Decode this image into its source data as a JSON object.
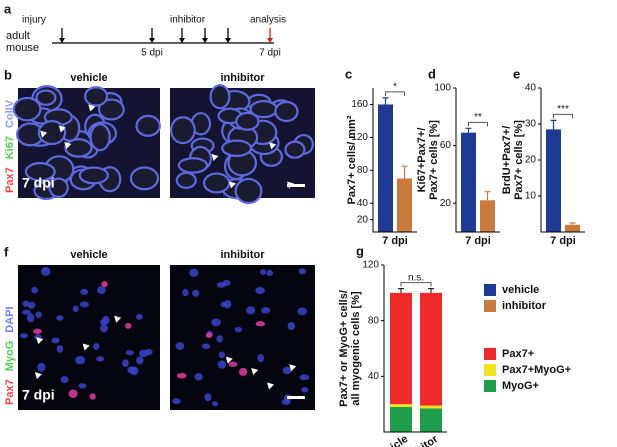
{
  "timeline": {
    "panel": "a",
    "start": [
      "adult",
      "mouse"
    ],
    "injury": "injury",
    "inhibitor": "inhibitor",
    "analysis": "analysis",
    "mid": "5 dpi",
    "end": "7 dpi"
  },
  "images": [
    {
      "panel": "b",
      "columns": [
        "vehicle",
        "inhibitor"
      ],
      "channels": [
        "ColIV",
        "Ki67",
        "Pax7"
      ],
      "timepoint": "7 dpi"
    },
    {
      "panel": "f",
      "columns": [
        "vehicle",
        "inhibitor"
      ],
      "channels": [
        "DAPI",
        "MyoG",
        "Pax7"
      ],
      "timepoint": "7 dpi"
    }
  ],
  "chart_data": [
    {
      "type": "bar",
      "panel": "c",
      "ylabel": [
        "Pax7+ cells/ mm²"
      ],
      "categories": [
        "7 dpi"
      ],
      "series": [
        {
          "name": "vehicle",
          "color": "#1f3a93",
          "values": [
            160
          ],
          "errors": [
            8
          ]
        },
        {
          "name": "inhibitor",
          "color": "#c97a3e",
          "values": [
            70
          ],
          "errors": [
            15
          ]
        }
      ],
      "ylim": [
        5,
        180
      ],
      "yticks": [
        20,
        40,
        80,
        120,
        160
      ],
      "significance": "*",
      "legend": "right"
    },
    {
      "type": "bar",
      "panel": "d",
      "ylabel": [
        "Ki67+Pax7+/",
        "Pax7+ cells [%]"
      ],
      "categories": [
        "7 dpi"
      ],
      "series": [
        {
          "name": "vehicle",
          "color": "#1f3a93",
          "values": [
            69
          ],
          "errors": [
            3
          ]
        },
        {
          "name": "inhibitor",
          "color": "#c97a3e",
          "values": [
            22
          ],
          "errors": [
            6
          ]
        }
      ],
      "ylim": [
        0,
        100
      ],
      "yticks": [
        20,
        60,
        100
      ],
      "significance": "**"
    },
    {
      "type": "bar",
      "panel": "e",
      "ylabel": [
        "BrdU+Pax7+/",
        "Pax7+ cells [%]"
      ],
      "categories": [
        "7 dpi"
      ],
      "series": [
        {
          "name": "vehicle",
          "color": "#1f3a93",
          "values": [
            28.5
          ],
          "errors": [
            2.5
          ]
        },
        {
          "name": "inhibitor",
          "color": "#c97a3e",
          "values": [
            2
          ],
          "errors": [
            0.5
          ]
        }
      ],
      "ylim": [
        0,
        40
      ],
      "yticks": [
        10,
        20,
        30,
        40
      ],
      "significance": "***"
    },
    {
      "type": "stacked_bar",
      "panel": "g",
      "ylabel": [
        "Pax7+ or MyoG+ cells/",
        "all myogenic cells [%]"
      ],
      "categories": [
        "vehicle",
        "inhibitor"
      ],
      "series": [
        {
          "name": "MyoG+",
          "color": "#1e9e4a",
          "values": [
            18,
            17
          ]
        },
        {
          "name": "Pax7+MyoG+",
          "color": "#f2e41c",
          "values": [
            2,
            2
          ]
        },
        {
          "name": "Pax7+",
          "color": "#ee2b2b",
          "values": [
            80,
            81
          ],
          "errors": [
            3,
            3
          ]
        }
      ],
      "ylim": [
        0,
        120
      ],
      "yticks": [
        40,
        80,
        120
      ],
      "significance": "n.s.",
      "legend": "right"
    }
  ]
}
